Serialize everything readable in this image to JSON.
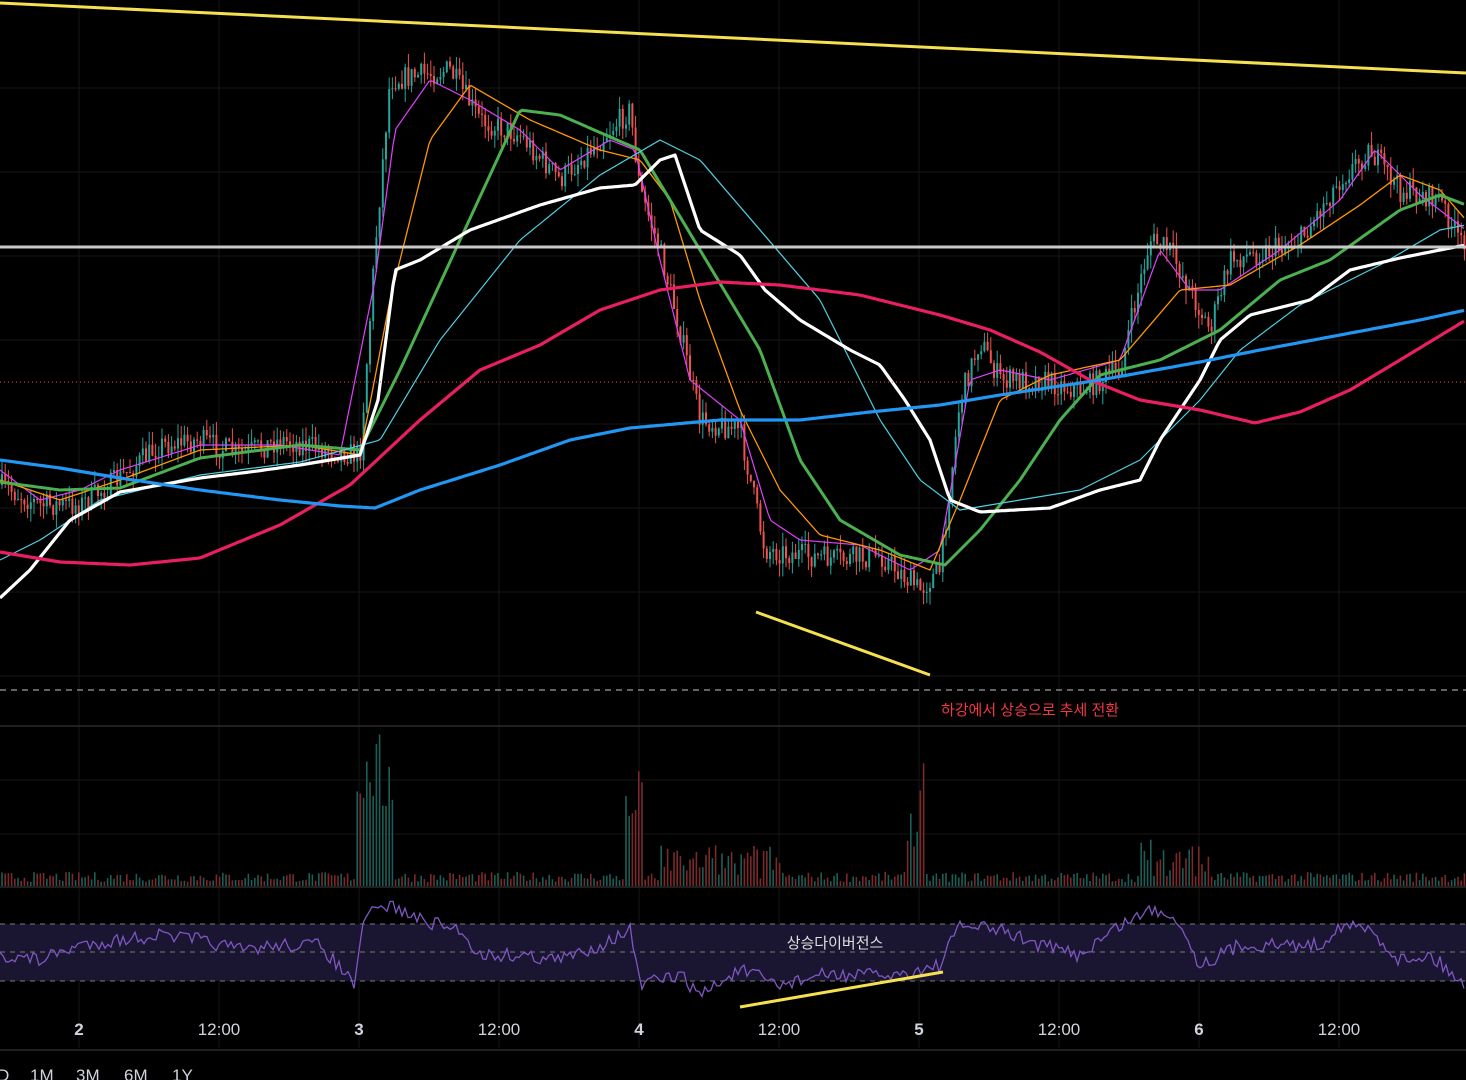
{
  "chart_data": {
    "type": "candlestick",
    "x_axis_ticks": [
      "2",
      "12:00",
      "3",
      "12:00",
      "4",
      "12:00",
      "5",
      "12:00",
      "6",
      "12:00"
    ],
    "annotations": {
      "trend_reversal": "하강에서 상승으로 추세 전환",
      "rsi_divergence": "상승다이버전스"
    },
    "panes": [
      "price",
      "volume",
      "rsi"
    ],
    "moving_averages": [
      {
        "color": "#e040fb"
      },
      {
        "color": "#ff9800"
      },
      {
        "color": "#4caf50"
      },
      {
        "color": "#4dd0e1"
      },
      {
        "color": "#ffffff"
      },
      {
        "color": "#e91e63"
      },
      {
        "color": "#2196f3"
      }
    ],
    "rsi_levels": [
      70,
      50,
      30
    ]
  },
  "timeframes": [
    "D",
    "1M",
    "3M",
    "6M",
    "1Y"
  ],
  "colors": {
    "up": "#26a69a",
    "down": "#ef5350",
    "trendline": "#f5e050",
    "horizontal_level": "#c8c8c8",
    "annotation_red": "#f23645",
    "rsi_line": "#7e57c2"
  }
}
